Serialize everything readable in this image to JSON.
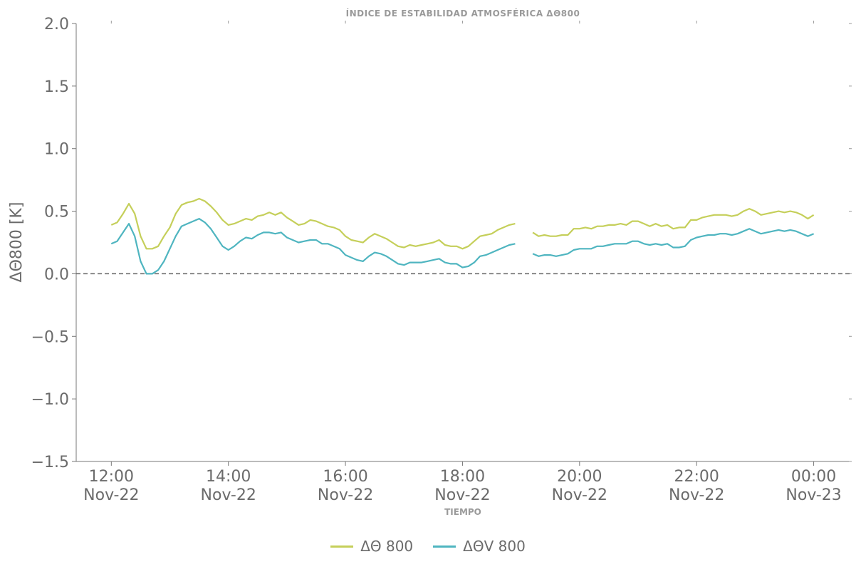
{
  "chart_data": {
    "type": "line",
    "title": "ÍNDICE DE ESTABILIDAD ATMOSFÉRICA ΔΘ800",
    "xlabel": "TIEMPO",
    "ylabel": "ΔΘ800 [K]",
    "ylim": [
      -1.5,
      2.0
    ],
    "xlim": [
      11.4,
      24.65
    ],
    "yticks": [
      -1.5,
      -1.0,
      -0.5,
      0.0,
      0.5,
      1.0,
      1.5,
      2.0
    ],
    "ytick_labels": [
      "−1.5",
      "−1.0",
      "−0.5",
      "0.0",
      "0.5",
      "1.0",
      "1.5",
      "2.0"
    ],
    "xticks": [
      12,
      14,
      16,
      18,
      20,
      22,
      24
    ],
    "xtick_labels": [
      [
        "12:00",
        "Nov-22"
      ],
      [
        "14:00",
        "Nov-22"
      ],
      [
        "16:00",
        "Nov-22"
      ],
      [
        "18:00",
        "Nov-22"
      ],
      [
        "20:00",
        "Nov-22"
      ],
      [
        "22:00",
        "Nov-22"
      ],
      [
        "00:00",
        "Nov-23"
      ]
    ],
    "reference_line": 0.0,
    "grid": false,
    "legend_position": "bottom-center",
    "series": [
      {
        "name": "ΔΘ 800",
        "color": "#c5cf5a",
        "points": [
          [
            12.0,
            0.39
          ],
          [
            12.1,
            0.41
          ],
          [
            12.2,
            0.48
          ],
          [
            12.3,
            0.56
          ],
          [
            12.4,
            0.48
          ],
          [
            12.5,
            0.3
          ],
          [
            12.6,
            0.2
          ],
          [
            12.7,
            0.2
          ],
          [
            12.8,
            0.22
          ],
          [
            12.9,
            0.3
          ],
          [
            13.0,
            0.37
          ],
          [
            13.1,
            0.48
          ],
          [
            13.2,
            0.55
          ],
          [
            13.3,
            0.57
          ],
          [
            13.4,
            0.58
          ],
          [
            13.5,
            0.6
          ],
          [
            13.6,
            0.58
          ],
          [
            13.7,
            0.54
          ],
          [
            13.8,
            0.49
          ],
          [
            13.9,
            0.43
          ],
          [
            14.0,
            0.39
          ],
          [
            14.1,
            0.4
          ],
          [
            14.2,
            0.42
          ],
          [
            14.3,
            0.44
          ],
          [
            14.4,
            0.43
          ],
          [
            14.5,
            0.46
          ],
          [
            14.6,
            0.47
          ],
          [
            14.7,
            0.49
          ],
          [
            14.8,
            0.47
          ],
          [
            14.9,
            0.49
          ],
          [
            15.0,
            0.45
          ],
          [
            15.1,
            0.42
          ],
          [
            15.2,
            0.39
          ],
          [
            15.3,
            0.4
          ],
          [
            15.4,
            0.43
          ],
          [
            15.5,
            0.42
          ],
          [
            15.6,
            0.4
          ],
          [
            15.7,
            0.38
          ],
          [
            15.8,
            0.37
          ],
          [
            15.9,
            0.35
          ],
          [
            16.0,
            0.3
          ],
          [
            16.1,
            0.27
          ],
          [
            16.2,
            0.26
          ],
          [
            16.3,
            0.25
          ],
          [
            16.4,
            0.29
          ],
          [
            16.5,
            0.32
          ],
          [
            16.6,
            0.3
          ],
          [
            16.7,
            0.28
          ],
          [
            16.8,
            0.25
          ],
          [
            16.9,
            0.22
          ],
          [
            17.0,
            0.21
          ],
          [
            17.1,
            0.23
          ],
          [
            17.2,
            0.22
          ],
          [
            17.3,
            0.23
          ],
          [
            17.4,
            0.24
          ],
          [
            17.5,
            0.25
          ],
          [
            17.6,
            0.27
          ],
          [
            17.7,
            0.23
          ],
          [
            17.8,
            0.22
          ],
          [
            17.9,
            0.22
          ],
          [
            18.0,
            0.2
          ],
          [
            18.1,
            0.22
          ],
          [
            18.2,
            0.26
          ],
          [
            18.3,
            0.3
          ],
          [
            18.4,
            0.31
          ],
          [
            18.5,
            0.32
          ],
          [
            18.6,
            0.35
          ],
          [
            18.7,
            0.37
          ],
          [
            18.8,
            0.39
          ],
          [
            18.9,
            0.4
          ]
        ],
        "gap_then": [
          [
            19.2,
            0.33
          ],
          [
            19.3,
            0.3
          ],
          [
            19.4,
            0.31
          ],
          [
            19.5,
            0.3
          ],
          [
            19.6,
            0.3
          ],
          [
            19.7,
            0.31
          ],
          [
            19.8,
            0.31
          ],
          [
            19.9,
            0.36
          ],
          [
            20.0,
            0.36
          ],
          [
            20.1,
            0.37
          ],
          [
            20.2,
            0.36
          ],
          [
            20.3,
            0.38
          ],
          [
            20.4,
            0.38
          ],
          [
            20.5,
            0.39
          ],
          [
            20.6,
            0.39
          ],
          [
            20.7,
            0.4
          ],
          [
            20.8,
            0.39
          ],
          [
            20.9,
            0.42
          ],
          [
            21.0,
            0.42
          ],
          [
            21.1,
            0.4
          ],
          [
            21.2,
            0.38
          ],
          [
            21.3,
            0.4
          ],
          [
            21.4,
            0.38
          ],
          [
            21.5,
            0.39
          ],
          [
            21.6,
            0.36
          ],
          [
            21.7,
            0.37
          ],
          [
            21.8,
            0.37
          ],
          [
            21.9,
            0.43
          ],
          [
            22.0,
            0.43
          ],
          [
            22.1,
            0.45
          ],
          [
            22.2,
            0.46
          ],
          [
            22.3,
            0.47
          ],
          [
            22.4,
            0.47
          ],
          [
            22.5,
            0.47
          ],
          [
            22.6,
            0.46
          ],
          [
            22.7,
            0.47
          ],
          [
            22.8,
            0.5
          ],
          [
            22.9,
            0.52
          ],
          [
            23.0,
            0.5
          ],
          [
            23.1,
            0.47
          ],
          [
            23.2,
            0.48
          ],
          [
            23.3,
            0.49
          ],
          [
            23.4,
            0.5
          ],
          [
            23.5,
            0.49
          ],
          [
            23.6,
            0.5
          ],
          [
            23.7,
            0.49
          ],
          [
            23.8,
            0.47
          ],
          [
            23.9,
            0.44
          ],
          [
            24.0,
            0.47
          ]
        ]
      },
      {
        "name": "ΔΘV 800",
        "color": "#4fb5c0",
        "points": [
          [
            12.0,
            0.24
          ],
          [
            12.1,
            0.26
          ],
          [
            12.2,
            0.33
          ],
          [
            12.3,
            0.4
          ],
          [
            12.4,
            0.3
          ],
          [
            12.5,
            0.1
          ],
          [
            12.6,
            0.0
          ],
          [
            12.7,
            0.0
          ],
          [
            12.8,
            0.03
          ],
          [
            12.9,
            0.1
          ],
          [
            13.0,
            0.2
          ],
          [
            13.1,
            0.3
          ],
          [
            13.2,
            0.38
          ],
          [
            13.3,
            0.4
          ],
          [
            13.4,
            0.42
          ],
          [
            13.5,
            0.44
          ],
          [
            13.6,
            0.41
          ],
          [
            13.7,
            0.36
          ],
          [
            13.8,
            0.29
          ],
          [
            13.9,
            0.22
          ],
          [
            14.0,
            0.19
          ],
          [
            14.1,
            0.22
          ],
          [
            14.2,
            0.26
          ],
          [
            14.3,
            0.29
          ],
          [
            14.4,
            0.28
          ],
          [
            14.5,
            0.31
          ],
          [
            14.6,
            0.33
          ],
          [
            14.7,
            0.33
          ],
          [
            14.8,
            0.32
          ],
          [
            14.9,
            0.33
          ],
          [
            15.0,
            0.29
          ],
          [
            15.1,
            0.27
          ],
          [
            15.2,
            0.25
          ],
          [
            15.3,
            0.26
          ],
          [
            15.4,
            0.27
          ],
          [
            15.5,
            0.27
          ],
          [
            15.6,
            0.24
          ],
          [
            15.7,
            0.24
          ],
          [
            15.8,
            0.22
          ],
          [
            15.9,
            0.2
          ],
          [
            16.0,
            0.15
          ],
          [
            16.1,
            0.13
          ],
          [
            16.2,
            0.11
          ],
          [
            16.3,
            0.1
          ],
          [
            16.4,
            0.14
          ],
          [
            16.5,
            0.17
          ],
          [
            16.6,
            0.16
          ],
          [
            16.7,
            0.14
          ],
          [
            16.8,
            0.11
          ],
          [
            16.9,
            0.08
          ],
          [
            17.0,
            0.07
          ],
          [
            17.1,
            0.09
          ],
          [
            17.2,
            0.09
          ],
          [
            17.3,
            0.09
          ],
          [
            17.4,
            0.1
          ],
          [
            17.5,
            0.11
          ],
          [
            17.6,
            0.12
          ],
          [
            17.7,
            0.09
          ],
          [
            17.8,
            0.08
          ],
          [
            17.9,
            0.08
          ],
          [
            18.0,
            0.05
          ],
          [
            18.1,
            0.06
          ],
          [
            18.2,
            0.09
          ],
          [
            18.3,
            0.14
          ],
          [
            18.4,
            0.15
          ],
          [
            18.5,
            0.17
          ],
          [
            18.6,
            0.19
          ],
          [
            18.7,
            0.21
          ],
          [
            18.8,
            0.23
          ],
          [
            18.9,
            0.24
          ]
        ],
        "gap_then": [
          [
            19.2,
            0.16
          ],
          [
            19.3,
            0.14
          ],
          [
            19.4,
            0.15
          ],
          [
            19.5,
            0.15
          ],
          [
            19.6,
            0.14
          ],
          [
            19.7,
            0.15
          ],
          [
            19.8,
            0.16
          ],
          [
            19.9,
            0.19
          ],
          [
            20.0,
            0.2
          ],
          [
            20.1,
            0.2
          ],
          [
            20.2,
            0.2
          ],
          [
            20.3,
            0.22
          ],
          [
            20.4,
            0.22
          ],
          [
            20.5,
            0.23
          ],
          [
            20.6,
            0.24
          ],
          [
            20.7,
            0.24
          ],
          [
            20.8,
            0.24
          ],
          [
            20.9,
            0.26
          ],
          [
            21.0,
            0.26
          ],
          [
            21.1,
            0.24
          ],
          [
            21.2,
            0.23
          ],
          [
            21.3,
            0.24
          ],
          [
            21.4,
            0.23
          ],
          [
            21.5,
            0.24
          ],
          [
            21.6,
            0.21
          ],
          [
            21.7,
            0.21
          ],
          [
            21.8,
            0.22
          ],
          [
            21.9,
            0.27
          ],
          [
            22.0,
            0.29
          ],
          [
            22.1,
            0.3
          ],
          [
            22.2,
            0.31
          ],
          [
            22.3,
            0.31
          ],
          [
            22.4,
            0.32
          ],
          [
            22.5,
            0.32
          ],
          [
            22.6,
            0.31
          ],
          [
            22.7,
            0.32
          ],
          [
            22.8,
            0.34
          ],
          [
            22.9,
            0.36
          ],
          [
            23.0,
            0.34
          ],
          [
            23.1,
            0.32
          ],
          [
            23.2,
            0.33
          ],
          [
            23.3,
            0.34
          ],
          [
            23.4,
            0.35
          ],
          [
            23.5,
            0.34
          ],
          [
            23.6,
            0.35
          ],
          [
            23.7,
            0.34
          ],
          [
            23.8,
            0.32
          ],
          [
            23.9,
            0.3
          ],
          [
            24.0,
            0.32
          ]
        ]
      }
    ]
  }
}
